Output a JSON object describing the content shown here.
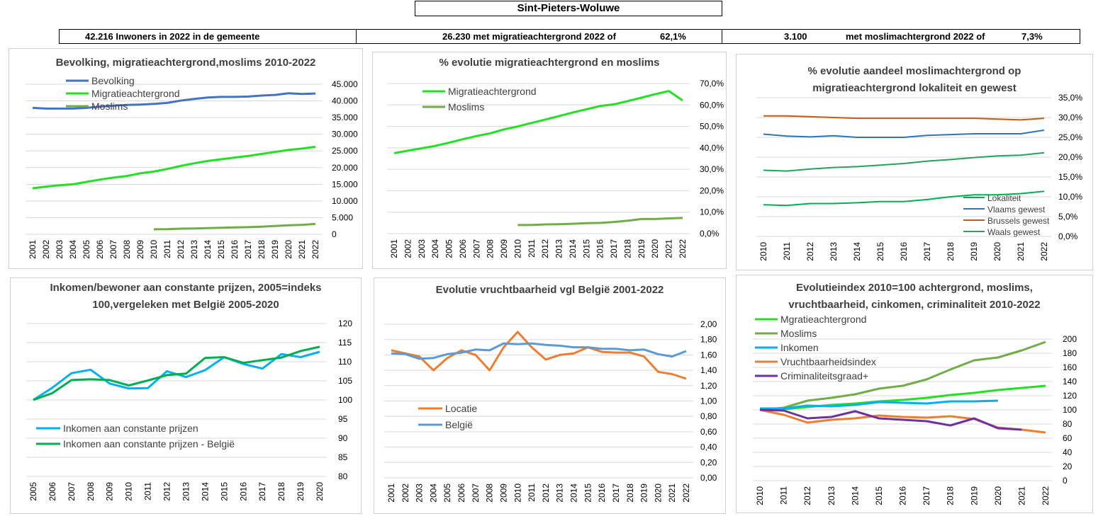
{
  "header": {
    "title": "Sint-Pieters-Woluwe",
    "inwoners": "42.216 Inwoners in 2022 in de gemeente",
    "migratie": "26.230 met migratieachtergrond 2022 of",
    "migratie_pct": "62,1%",
    "moslim_count": "3.100",
    "moslim_text": "met moslimachtergrond 2022 of",
    "moslim_pct": "7,3%"
  },
  "chart_data": [
    {
      "id": "c1",
      "type": "line",
      "title": "Bevolking, migratieachtergrond,moslims  2010-2022",
      "categories": [
        "2001",
        "2002",
        "2003",
        "2004",
        "2005",
        "2006",
        "2007",
        "2008",
        "2009",
        "2010",
        "2011",
        "2012",
        "2013",
        "2014",
        "2015",
        "2016",
        "2017",
        "2018",
        "2019",
        "2020",
        "2021",
        "2022"
      ],
      "ylim": [
        0,
        45000
      ],
      "yticks": [
        "0",
        "5.000",
        "10.000",
        "15.000",
        "20.000",
        "25.000",
        "30.000",
        "35.000",
        "40.000",
        "45.000"
      ],
      "legend": "top-left",
      "series": [
        {
          "name": "Bevolking",
          "color": "#4472c4",
          "values": [
            37900,
            37700,
            37700,
            37700,
            37900,
            38300,
            38600,
            38800,
            38900,
            39100,
            39400,
            40100,
            40600,
            41000,
            41200,
            41200,
            41300,
            41600,
            41800,
            42300,
            42100,
            42216
          ]
        },
        {
          "name": "Migratieachtergrond",
          "color": "#22e022",
          "values": [
            13800,
            14300,
            14700,
            15000,
            15700,
            16400,
            17000,
            17500,
            18300,
            18800,
            19600,
            20500,
            21300,
            22000,
            22500,
            23000,
            23500,
            24100,
            24700,
            25300,
            25700,
            26230
          ]
        },
        {
          "name": "Moslims",
          "color": "#70ad47",
          "values": [
            null,
            null,
            null,
            null,
            null,
            null,
            null,
            null,
            null,
            1500,
            1550,
            1700,
            1750,
            1850,
            1950,
            2050,
            2150,
            2300,
            2500,
            2700,
            2850,
            3100
          ]
        }
      ]
    },
    {
      "id": "c2",
      "type": "line",
      "title": "% evolutie migratieachtergrond  en moslims",
      "categories": [
        "2001",
        "2002",
        "2003",
        "2004",
        "2005",
        "2006",
        "2007",
        "2008",
        "2009",
        "2010",
        "2011",
        "2012",
        "2013",
        "2014",
        "2015",
        "2016",
        "2017",
        "2018",
        "2019",
        "2020",
        "2021",
        "2022"
      ],
      "ylim": [
        0,
        70
      ],
      "yticks": [
        "0,0%",
        "10,0%",
        "20,0%",
        "30,0%",
        "40,0%",
        "50,0%",
        "60,0%",
        "70,0%"
      ],
      "legend": "top-left",
      "series": [
        {
          "name": "Migratieachtergrond",
          "color": "#22e022",
          "values": [
            37.5,
            38.7,
            39.8,
            40.9,
            42.4,
            44.0,
            45.5,
            46.8,
            48.6,
            50.0,
            51.6,
            53.2,
            54.8,
            56.5,
            58.0,
            59.5,
            60.3,
            61.8,
            63.4,
            65.0,
            66.5,
            62.1
          ]
        },
        {
          "name": "Moslims",
          "color": "#70ad47",
          "values": [
            null,
            null,
            null,
            null,
            null,
            null,
            null,
            null,
            null,
            4.0,
            4.0,
            4.3,
            4.4,
            4.6,
            4.9,
            5.0,
            5.4,
            6.0,
            6.8,
            6.8,
            7.1,
            7.3
          ]
        }
      ]
    },
    {
      "id": "c3",
      "type": "line",
      "title": "% evolutie aandeel moslimachtergrond op migratieachtergrond lokaliteit  en gewest",
      "categories": [
        "2010",
        "2011",
        "2012",
        "2013",
        "2014",
        "2015",
        "2016",
        "2017",
        "2018",
        "2019",
        "2020",
        "2021",
        "2022"
      ],
      "ylim": [
        0,
        35
      ],
      "yticks": [
        "0,0%",
        "5,0%",
        "10,0%",
        "15,0%",
        "20,0%",
        "25,0%",
        "30,0%",
        "35,0%"
      ],
      "legend": "bottom-right",
      "series": [
        {
          "name": "Lokaliteit",
          "color": "#00b050",
          "values": [
            8.0,
            7.8,
            8.3,
            8.3,
            8.5,
            8.8,
            8.8,
            9.3,
            10.0,
            10.5,
            10.5,
            10.8,
            11.4
          ]
        },
        {
          "name": "Vlaams gewest",
          "color": "#2e75b6",
          "values": [
            25.8,
            25.3,
            25.1,
            25.4,
            25.0,
            25.0,
            25.0,
            25.5,
            25.7,
            25.9,
            25.9,
            25.9,
            26.8
          ]
        },
        {
          "name": "Brussels gewest",
          "color": "#c55a11",
          "values": [
            30.4,
            30.4,
            30.2,
            30.0,
            29.8,
            29.8,
            29.8,
            29.8,
            29.8,
            29.8,
            29.6,
            29.4,
            29.8
          ]
        },
        {
          "name": "Waals gewest",
          "color": "#24a35a",
          "values": [
            16.7,
            16.5,
            17.0,
            17.4,
            17.6,
            18.0,
            18.4,
            19.0,
            19.4,
            19.9,
            20.3,
            20.5,
            21.1
          ]
        }
      ]
    },
    {
      "id": "c4",
      "type": "line",
      "title": "Inkomen/bewoner aan constante prijzen, 2005=indeks 100,vergeleken met België 2005-2020",
      "categories": [
        "2005",
        "2006",
        "2007",
        "2008",
        "2009",
        "2010",
        "2011",
        "2012",
        "2013",
        "2014",
        "2015",
        "2016",
        "2017",
        "2018",
        "2019",
        "2020"
      ],
      "ylim": [
        80,
        120
      ],
      "yticks": [
        "80",
        "85",
        "90",
        "95",
        "100",
        "105",
        "110",
        "115",
        "120"
      ],
      "legend": "bottom-left",
      "series": [
        {
          "name": "Inkomen aan constante prijzen",
          "color": "#00b0f0",
          "values": [
            100.0,
            103.2,
            107.0,
            107.9,
            104.3,
            103.0,
            103.1,
            107.5,
            106.0,
            107.8,
            111.2,
            109.4,
            108.2,
            112.0,
            111.2,
            112.6
          ]
        },
        {
          "name": "Inkomen aan constante prijzen - België",
          "color": "#00b050",
          "values": [
            100.0,
            101.8,
            105.2,
            105.4,
            105.2,
            103.8,
            105.1,
            106.5,
            106.9,
            111.0,
            111.2,
            109.7,
            110.4,
            111.1,
            112.8,
            113.9
          ]
        }
      ]
    },
    {
      "id": "c5",
      "type": "line",
      "title": "Evolutie vruchtbaarheid vgl België 2001-2022",
      "categories": [
        "2001",
        "2002",
        "2003",
        "2004",
        "2005",
        "2006",
        "2007",
        "2008",
        "2009",
        "2010",
        "2011",
        "2012",
        "2013",
        "2014",
        "2015",
        "2016",
        "2017",
        "2018",
        "2019",
        "2020",
        "2021",
        "2022"
      ],
      "ylim": [
        0,
        2.0
      ],
      "yticks": [
        "0,00",
        "0,20",
        "0,40",
        "0,60",
        "0,80",
        "1,00",
        "1,20",
        "1,40",
        "1,60",
        "1,80",
        "2,00"
      ],
      "legend": "middle-left",
      "series": [
        {
          "name": "Locatie",
          "color": "#ed7d31",
          "values": [
            1.66,
            1.62,
            1.58,
            1.4,
            1.56,
            1.66,
            1.6,
            1.4,
            1.7,
            1.9,
            1.7,
            1.54,
            1.6,
            1.62,
            1.7,
            1.64,
            1.63,
            1.63,
            1.58,
            1.38,
            1.35,
            1.29
          ]
        },
        {
          "name": "België",
          "color": "#5b9bd5",
          "values": [
            1.62,
            1.61,
            1.55,
            1.56,
            1.61,
            1.63,
            1.67,
            1.66,
            1.75,
            1.74,
            1.75,
            1.73,
            1.72,
            1.7,
            1.7,
            1.68,
            1.68,
            1.66,
            1.67,
            1.61,
            1.58,
            1.65
          ]
        }
      ]
    },
    {
      "id": "c6",
      "type": "line",
      "title": "Evolutieindex 2010=100 achtergrond, moslims, vruchtbaarheid, cinkomen, criminaliteit  2010-2022",
      "categories": [
        "2010",
        "2011",
        "2012",
        "2013",
        "2014",
        "2015",
        "2016",
        "2017",
        "2018",
        "2019",
        "2020",
        "2021",
        "2022"
      ],
      "ylim": [
        0,
        200
      ],
      "yticks": [
        "0",
        "20",
        "40",
        "60",
        "80",
        "100",
        "120",
        "140",
        "160",
        "180",
        "200"
      ],
      "legend": "top-left",
      "series": [
        {
          "name": "Mgratieachtergrond",
          "color": "#22e022",
          "values": [
            100,
            101,
            104,
            107,
            109,
            112,
            114,
            117,
            121,
            124,
            128,
            131,
            134
          ]
        },
        {
          "name": "Moslims",
          "color": "#70ad47",
          "values": [
            100,
            103,
            113,
            117,
            122,
            130,
            134,
            143,
            157,
            170,
            174,
            184,
            196
          ]
        },
        {
          "name": "Inkomen",
          "color": "#00b0f0",
          "values": [
            102,
            102,
            106,
            105,
            107,
            111,
            110,
            109,
            112,
            112,
            113,
            null,
            null
          ]
        },
        {
          "name": "Vruchtbaarheidsindex",
          "color": "#ed7d31",
          "values": [
            100,
            93,
            82,
            86,
            88,
            92,
            90,
            89,
            91,
            87,
            75,
            72,
            68
          ]
        },
        {
          "name": "Criminaliteitsgraad+",
          "color": "#7030a0",
          "values": [
            100,
            99,
            88,
            90,
            98,
            88,
            86,
            84,
            78,
            88,
            74,
            72,
            null
          ]
        }
      ]
    }
  ]
}
